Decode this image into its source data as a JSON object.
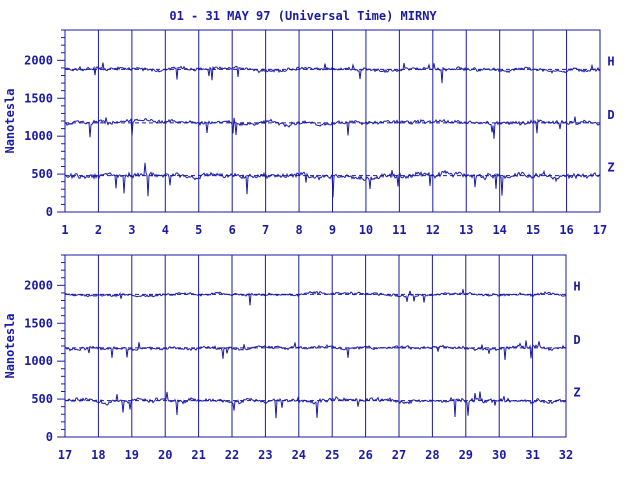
{
  "title": "01 - 31 MAY 97 (Universal Time) MIRNY",
  "colors": {
    "trace": "#1a1aa6",
    "axis": "#1a1aa6",
    "background": "#ffffff"
  },
  "chart_data": [
    {
      "type": "line",
      "ylabel": "Nanotesla",
      "ylim": [
        0,
        2400
      ],
      "yticks": [
        0,
        500,
        1000,
        1500,
        2000
      ],
      "xlim": [
        1,
        17
      ],
      "xticks": [
        "1",
        "2",
        "3",
        "4",
        "5",
        "6",
        "7",
        "8",
        "9",
        "10",
        "11",
        "12",
        "13",
        "14",
        "15",
        "16",
        "17"
      ],
      "grid": "vertical lines at each day",
      "series": [
        {
          "name": "H",
          "baseline": 1880,
          "noise": 30
        },
        {
          "name": "D",
          "baseline": 1175,
          "noise": 35
        },
        {
          "name": "Z",
          "baseline": 480,
          "noise": 45
        }
      ]
    },
    {
      "type": "line",
      "ylabel": "Nanotesla",
      "ylim": [
        0,
        2400
      ],
      "yticks": [
        0,
        500,
        1000,
        1500,
        2000
      ],
      "xlim": [
        17,
        32
      ],
      "xticks": [
        "17",
        "18",
        "19",
        "20",
        "21",
        "22",
        "23",
        "24",
        "25",
        "26",
        "27",
        "28",
        "29",
        "30",
        "31",
        "32"
      ],
      "grid": "vertical lines at each day",
      "series": [
        {
          "name": "H",
          "baseline": 1880,
          "noise": 25
        },
        {
          "name": "D",
          "baseline": 1175,
          "noise": 30
        },
        {
          "name": "Z",
          "baseline": 480,
          "noise": 40
        }
      ]
    }
  ]
}
